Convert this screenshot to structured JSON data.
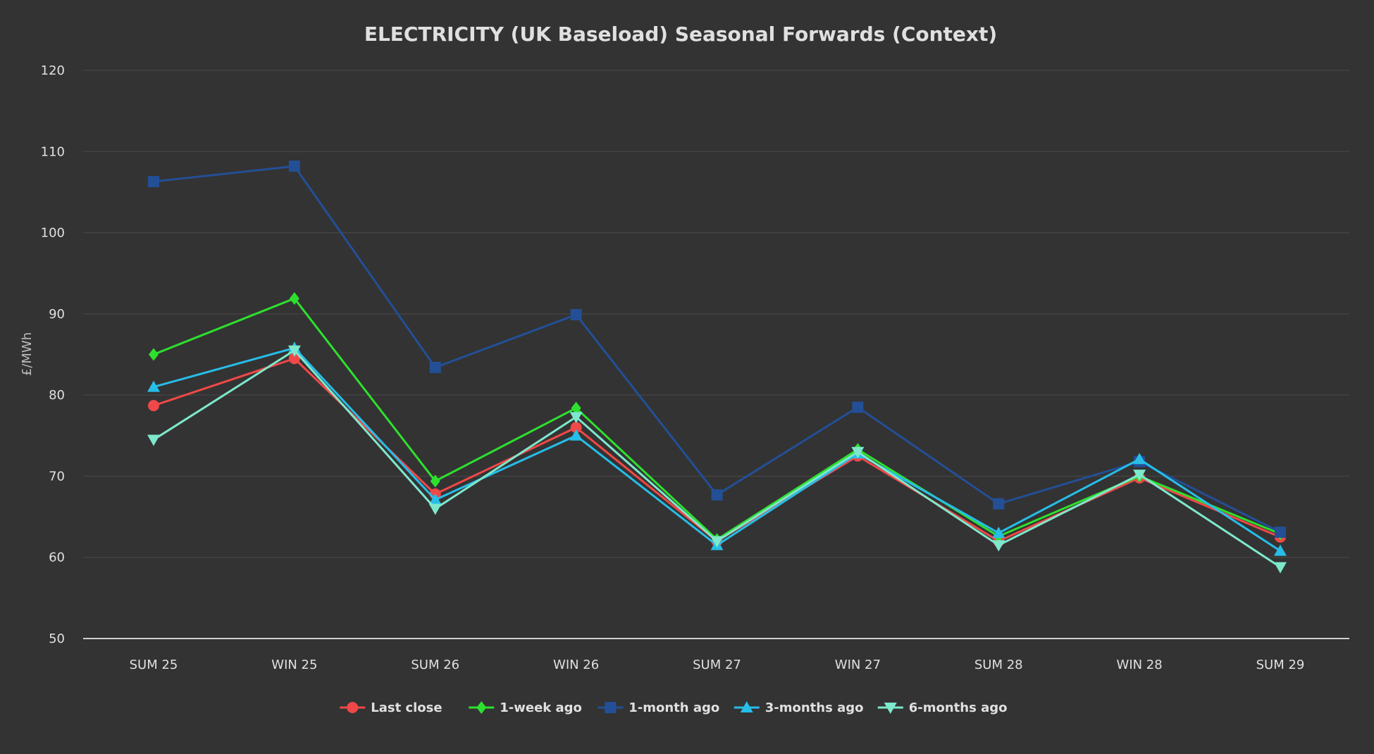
{
  "chart_data": {
    "type": "line",
    "title": "ELECTRICITY (UK Baseload) Seasonal Forwards (Context)",
    "xlabel": "",
    "ylabel": "£/MWh",
    "ylim": [
      50,
      120
    ],
    "yticks": [
      50,
      60,
      70,
      80,
      90,
      100,
      110,
      120
    ],
    "grid": true,
    "legend_position": "bottom-center",
    "categories": [
      "SUM 25",
      "WIN 25",
      "SUM 26",
      "WIN 26",
      "SUM 27",
      "WIN 27",
      "SUM 28",
      "WIN 28",
      "SUM 29"
    ],
    "series": [
      {
        "name": "Last close",
        "color": "#f04848",
        "marker": "circle",
        "values": [
          78.7,
          84.5,
          67.8,
          76.0,
          62.0,
          72.5,
          62.0,
          69.8,
          62.5
        ]
      },
      {
        "name": "1-week ago",
        "color": "#2ee02e",
        "marker": "diamond",
        "values": [
          85.0,
          91.9,
          69.4,
          78.4,
          62.2,
          73.3,
          62.6,
          70.0,
          62.9
        ]
      },
      {
        "name": "1-month ago",
        "color": "#234f96",
        "marker": "square",
        "values": [
          106.3,
          108.2,
          83.4,
          89.9,
          67.7,
          78.5,
          66.6,
          71.8,
          63.1
        ]
      },
      {
        "name": "3-months ago",
        "color": "#27bde8",
        "marker": "triangle-up",
        "values": [
          81.0,
          85.8,
          67.1,
          75.0,
          61.5,
          72.8,
          63.0,
          72.1,
          60.8
        ]
      },
      {
        "name": "6-months ago",
        "color": "#7de8cc",
        "marker": "triangle-down",
        "values": [
          74.5,
          85.5,
          66.0,
          77.3,
          62.0,
          73.0,
          61.5,
          70.2,
          58.8
        ]
      }
    ]
  }
}
